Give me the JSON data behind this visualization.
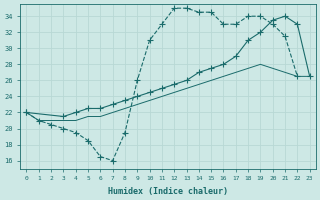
{
  "bg_color": "#cde8e5",
  "grid_color": "#b8d8d5",
  "line_color": "#1a6b6b",
  "xlabel": "Humidex (Indice chaleur)",
  "xlim": [
    -0.5,
    23.5
  ],
  "ylim": [
    15,
    35.5
  ],
  "yticks": [
    16,
    18,
    20,
    22,
    24,
    26,
    28,
    30,
    32,
    34
  ],
  "xticks": [
    0,
    1,
    2,
    3,
    4,
    5,
    6,
    7,
    8,
    9,
    10,
    11,
    12,
    13,
    14,
    15,
    16,
    17,
    18,
    19,
    20,
    21,
    22,
    23
  ],
  "line1_x": [
    0,
    1,
    2,
    3,
    4,
    5,
    6,
    7,
    8,
    9,
    10,
    11,
    12,
    13,
    14,
    15,
    16,
    17,
    18,
    19,
    20,
    21,
    22
  ],
  "line1_y": [
    22,
    21,
    20.5,
    20,
    19.5,
    18.5,
    16.5,
    16,
    19.5,
    26,
    31,
    33,
    35,
    35,
    34.5,
    34.5,
    33,
    33,
    34,
    34,
    33,
    31.5,
    26.5
  ],
  "line2_x": [
    0,
    3,
    4,
    5,
    6,
    7,
    8,
    9,
    10,
    11,
    12,
    13,
    14,
    15,
    16,
    17,
    18,
    19,
    20,
    21,
    22,
    23
  ],
  "line2_y": [
    22,
    21.5,
    22,
    22.5,
    22.5,
    23,
    23.5,
    24,
    24.5,
    25,
    25.5,
    26,
    27,
    27.5,
    28,
    29,
    31,
    32,
    33.5,
    34,
    33,
    26.5
  ],
  "line3_x": [
    0,
    1,
    2,
    3,
    4,
    5,
    6,
    7,
    8,
    9,
    10,
    11,
    12,
    13,
    14,
    15,
    16,
    17,
    18,
    19,
    20,
    21,
    22,
    23
  ],
  "line3_y": [
    22,
    21,
    21,
    21,
    21,
    21.5,
    21.5,
    22,
    22.5,
    23,
    23.5,
    24,
    24.5,
    25,
    25.5,
    26,
    26.5,
    27,
    27.5,
    28,
    27.5,
    27,
    26.5,
    26.5
  ]
}
